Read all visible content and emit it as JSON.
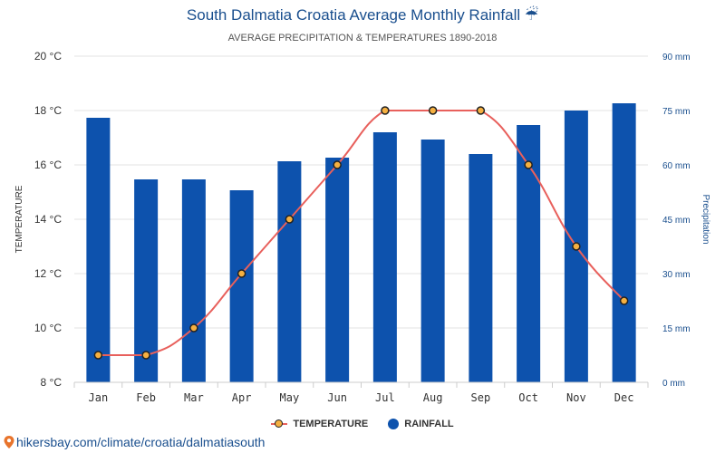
{
  "header": {
    "title": "South Dalmatia Croatia Average Monthly Rainfall ☔",
    "subtitle": "AVERAGE PRECIPITATION & TEMPERATURES 1890-2018"
  },
  "legend": {
    "temperature_label": "TEMPERATURE",
    "rainfall_label": "RAINFALL"
  },
  "source": {
    "link_text": "hikersbay.com/climate/croatia/dalmatiasouth"
  },
  "colors": {
    "bar": "#0d52ad",
    "line": "#e8605c",
    "marker_fill": "#f5b041",
    "marker_stroke": "#222222",
    "title": "#1a4f8e"
  },
  "chart_data": {
    "type": "bar",
    "categories": [
      "Jan",
      "Feb",
      "Mar",
      "Apr",
      "May",
      "Jun",
      "Jul",
      "Aug",
      "Sep",
      "Oct",
      "Nov",
      "Dec"
    ],
    "series": [
      {
        "name": "RAINFALL",
        "type": "bar",
        "axis": "right",
        "values": [
          73,
          56,
          56,
          53,
          61,
          62,
          69,
          67,
          63,
          71,
          75,
          77
        ]
      },
      {
        "name": "TEMPERATURE",
        "type": "line",
        "axis": "left",
        "values": [
          9,
          9,
          10,
          12,
          14,
          16,
          18,
          18,
          18,
          16,
          13,
          11
        ]
      }
    ],
    "ylabel": "TEMPERATURE",
    "y2label": "Precipitation",
    "ylim": [
      8,
      20
    ],
    "y2lim": [
      0,
      90
    ],
    "yticks": [
      "8 °C",
      "10 °C",
      "12 °C",
      "14 °C",
      "16 °C",
      "18 °C",
      "20 °C"
    ],
    "y2ticks": [
      "0 mm",
      "15 mm",
      "30 mm",
      "45 mm",
      "60 mm",
      "75 mm",
      "90 mm"
    ],
    "grid": true,
    "legend_position": "bottom-center"
  }
}
